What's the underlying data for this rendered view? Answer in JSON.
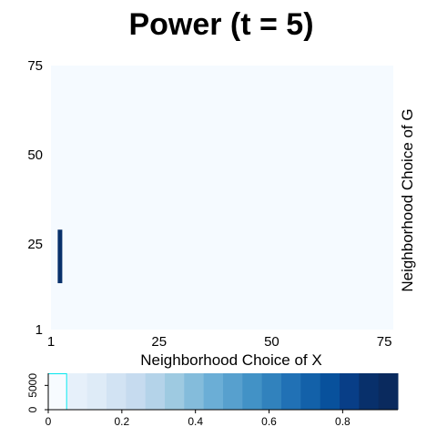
{
  "chart_data": [
    {
      "type": "heatmap",
      "title": "Power (t = 5)",
      "xlabel": "Neighborhood Choice of X",
      "ylabel": "Neighborhood Choice of G",
      "xlim": [
        1,
        77
      ],
      "ylim": [
        1,
        75
      ],
      "xticks": [
        "1",
        "25",
        "50",
        "75"
      ],
      "yticks": [
        "1",
        "25",
        "50",
        "75"
      ],
      "background_value": 0,
      "background_color": "#f5faff",
      "cells": [
        {
          "x": 3,
          "y_range": [
            14,
            29
          ],
          "value": 0.95,
          "color": "#08306b"
        }
      ]
    },
    {
      "type": "bar",
      "role": "colorbar-histogram",
      "xlim": [
        0,
        0.95
      ],
      "ylim": [
        0,
        7500
      ],
      "xticks": [
        "0",
        "0.2",
        "0.4",
        "0.6",
        "0.8"
      ],
      "yticks": [
        "0",
        "5000"
      ],
      "bins": [
        {
          "from": 0.0,
          "to": 0.05,
          "count": 7400
        }
      ],
      "outline_color": "#00e5ee",
      "gradient": [
        "#f7fbff",
        "#e6f0fa",
        "#deebf7",
        "#d2e3f3",
        "#c6dbef",
        "#b4d3e9",
        "#9ecae1",
        "#84bcdb",
        "#6baed6",
        "#57a0ce",
        "#4292c6",
        "#3182bd",
        "#2171b5",
        "#1361a9",
        "#08519c",
        "#083e87",
        "#08306b",
        "#0a2a5e"
      ]
    }
  ]
}
